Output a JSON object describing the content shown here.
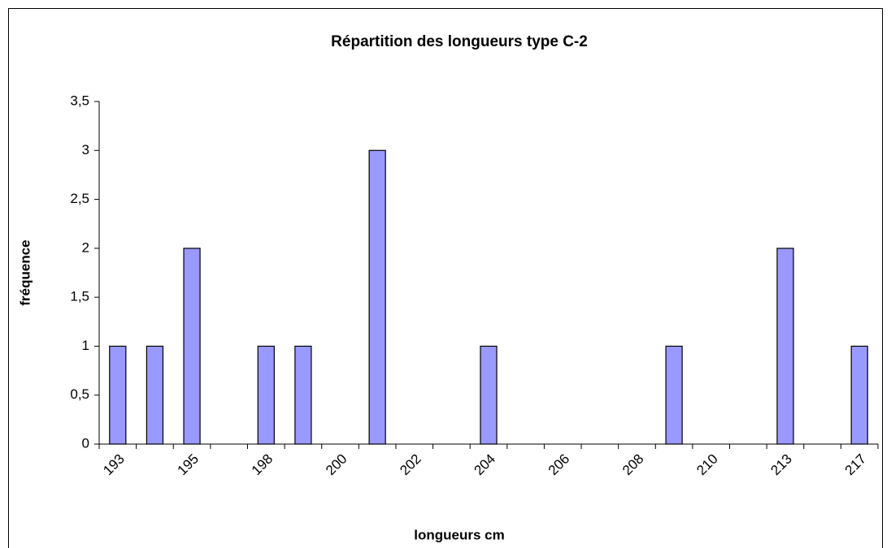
{
  "chart_data": {
    "type": "bar",
    "title": "Répartition des longueurs type C-2",
    "x_label": "longueurs cm",
    "y_label": "fréquence",
    "categories": [
      "193",
      null,
      "195",
      null,
      "198",
      null,
      "200",
      null,
      "202",
      null,
      "204",
      null,
      "206",
      null,
      "208",
      null,
      "210",
      null,
      "213",
      null,
      "217"
    ],
    "values": [
      1,
      1,
      2,
      0,
      1,
      1,
      0,
      3,
      0,
      0,
      1,
      0,
      0,
      0,
      0,
      1,
      0,
      0,
      2,
      0,
      1
    ],
    "color": "#9999ff",
    "ylim": [
      0,
      3.5
    ],
    "yticks": [
      0,
      {
        "value": 0.5,
        "label": "0,5"
      },
      1,
      {
        "value": 1.5,
        "label": "1,5"
      },
      2,
      {
        "value": 2.5,
        "label": "2,5"
      },
      3,
      {
        "value": 3.5,
        "label": "3,5"
      }
    ],
    "grid": false
  }
}
